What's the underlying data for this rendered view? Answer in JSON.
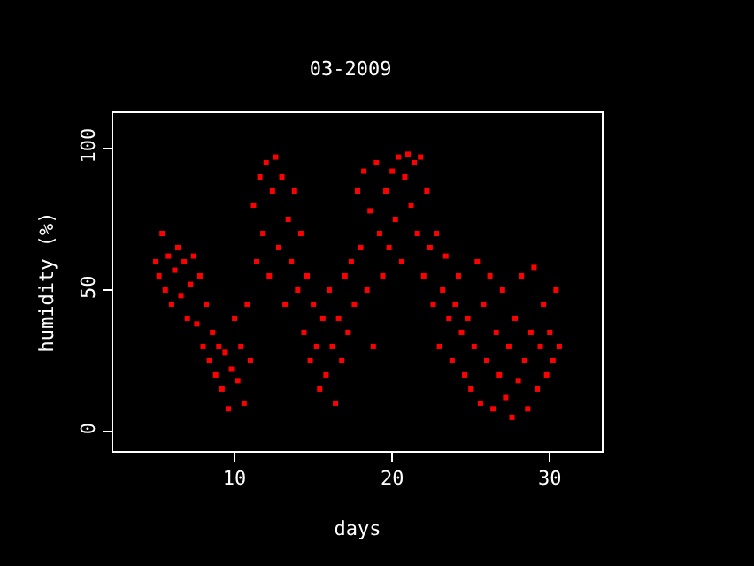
{
  "chart_data": {
    "type": "scatter",
    "title": "03-2009",
    "xlabel": "days",
    "ylabel": "humidity (%)",
    "color": "#ff0000",
    "marker": "square",
    "grid": false,
    "legend": false,
    "x": [
      5.0,
      5.2,
      5.4,
      5.6,
      5.8,
      6.0,
      6.2,
      6.4,
      6.6,
      6.8,
      7.0,
      7.2,
      7.4,
      7.6,
      7.8,
      8.0,
      8.2,
      8.4,
      8.6,
      8.8,
      9.0,
      9.2,
      9.4,
      9.6,
      9.8,
      10.0,
      10.2,
      10.4,
      10.6,
      10.8,
      11.0,
      11.2,
      11.4,
      11.6,
      11.8,
      12.0,
      12.2,
      12.4,
      12.6,
      12.8,
      13.0,
      13.2,
      13.4,
      13.6,
      13.8,
      14.0,
      14.2,
      14.4,
      14.6,
      14.8,
      15.0,
      15.2,
      15.4,
      15.6,
      15.8,
      16.0,
      16.2,
      16.4,
      16.6,
      16.8,
      17.0,
      17.2,
      17.4,
      17.6,
      17.8,
      18.0,
      18.2,
      18.4,
      18.6,
      18.8,
      19.0,
      19.2,
      19.4,
      19.6,
      19.8,
      20.0,
      20.2,
      20.4,
      20.6,
      20.8,
      21.0,
      21.2,
      21.4,
      21.6,
      21.8,
      22.0,
      22.2,
      22.4,
      22.6,
      22.8,
      23.0,
      23.2,
      23.4,
      23.6,
      23.8,
      24.0,
      24.2,
      24.4,
      24.6,
      24.8,
      25.0,
      25.2,
      25.4,
      25.6,
      25.8,
      26.0,
      26.2,
      26.4,
      26.6,
      26.8,
      27.0,
      27.2,
      27.4,
      27.6,
      27.8,
      28.0,
      28.2,
      28.4,
      28.6,
      28.8,
      29.0,
      29.2,
      29.4,
      29.6,
      29.8,
      30.0,
      30.2,
      30.4,
      30.6
    ],
    "values": [
      60,
      55,
      70,
      50,
      62,
      45,
      57,
      65,
      48,
      60,
      40,
      52,
      62,
      38,
      55,
      30,
      45,
      25,
      35,
      20,
      30,
      15,
      28,
      8,
      22,
      40,
      18,
      30,
      10,
      45,
      25,
      80,
      60,
      90,
      70,
      95,
      55,
      85,
      97,
      65,
      90,
      45,
      75,
      60,
      85,
      50,
      70,
      35,
      55,
      25,
      45,
      30,
      15,
      40,
      20,
      50,
      30,
      10,
      40,
      25,
      55,
      35,
      60,
      45,
      85,
      65,
      92,
      50,
      78,
      30,
      95,
      70,
      55,
      85,
      65,
      92,
      75,
      97,
      60,
      90,
      98,
      80,
      95,
      70,
      97,
      55,
      85,
      65,
      45,
      70,
      30,
      50,
      62,
      40,
      25,
      45,
      55,
      35,
      20,
      40,
      15,
      30,
      60,
      10,
      45,
      25,
      55,
      8,
      35,
      20,
      50,
      12,
      30,
      5,
      40,
      18,
      55,
      25,
      8,
      35,
      58,
      15,
      30,
      45,
      20,
      35,
      25,
      50,
      30
    ],
    "xlim": [
      2.3,
      33.3
    ],
    "xticks": [
      10,
      20,
      30
    ],
    "ylim": [
      -6.9,
      112.5
    ],
    "yticks": [
      0,
      50,
      100
    ]
  }
}
